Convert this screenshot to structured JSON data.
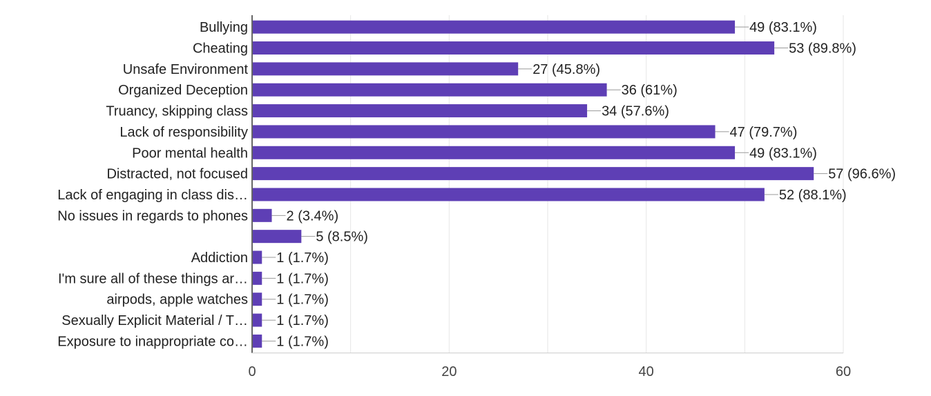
{
  "chart_data": {
    "type": "bar",
    "orientation": "horizontal",
    "title": "",
    "xlabel": "",
    "ylabel": "",
    "xlim": [
      0,
      60
    ],
    "xticks": [
      0,
      20,
      40,
      60
    ],
    "grid": true,
    "bar_color": "#5e3fb5",
    "categories": [
      "Bullying",
      "Cheating",
      "Unsafe Environment",
      "Organized Deception",
      "Truancy, skipping class",
      "Lack of responsibility",
      "Poor mental health",
      "Distracted, not focused",
      "Lack of engaging in class dis…",
      "No issues in regards to phones",
      "",
      "Addiction",
      "I'm sure all of these things ar…",
      "airpods, apple watches",
      "Sexually Explicit Material / T…",
      "Exposure to inappropriate co…"
    ],
    "values": [
      49,
      53,
      27,
      36,
      34,
      47,
      49,
      57,
      52,
      2,
      5,
      1,
      1,
      1,
      1,
      1
    ],
    "value_labels": [
      "49 (83.1%)",
      "53 (89.8%)",
      "27 (45.8%)",
      "36 (61%)",
      "34 (57.6%)",
      "47 (79.7%)",
      "49 (83.1%)",
      "57 (96.6%)",
      "52 (88.1%)",
      "2 (3.4%)",
      "5 (8.5%)",
      "1 (1.7%)",
      "1 (1.7%)",
      "1 (1.7%)",
      "1 (1.7%)",
      "1 (1.7%)"
    ]
  }
}
